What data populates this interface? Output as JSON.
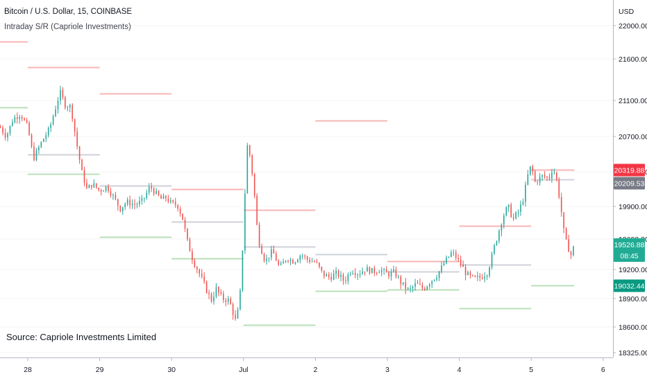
{
  "header": {
    "symbol_title": "Bitcoin / U.S. Dollar, 15, COINBASE",
    "indicator_title": "Intraday S/R (Capriole Investments)"
  },
  "source_note": "Source: Capriole Investments Limited",
  "chart_data": {
    "type": "candlestick",
    "currency_label": "USD",
    "y_ticks": [
      {
        "value": 22000,
        "label": "22000.00"
      },
      {
        "value": 21600,
        "label": "21600.00"
      },
      {
        "value": 21100,
        "label": "21100.00"
      },
      {
        "value": 20700,
        "label": "20700.00"
      },
      {
        "value": 20300,
        "label": "20300.00"
      },
      {
        "value": 19900,
        "label": "19900.00"
      },
      {
        "value": 19600,
        "label": "19600.00"
      },
      {
        "value": 19200,
        "label": "19200.00"
      },
      {
        "value": 18900,
        "label": "18900.00"
      },
      {
        "value": 18600,
        "label": "18600.00"
      },
      {
        "value": 18325,
        "label": "18325.00"
      }
    ],
    "x_ticks": [
      {
        "day": 0,
        "label": "28"
      },
      {
        "day": 1,
        "label": "29"
      },
      {
        "day": 2,
        "label": "30"
      },
      {
        "day": 3,
        "label": "Jul"
      },
      {
        "day": 4,
        "label": "2"
      },
      {
        "day": 5,
        "label": "3"
      },
      {
        "day": 6,
        "label": "4"
      },
      {
        "day": 7,
        "label": "5"
      },
      {
        "day": 8,
        "label": "6"
      }
    ],
    "price_badges": [
      {
        "value": 20319.88,
        "label": "20319.88",
        "color": "#f23645",
        "sub": ""
      },
      {
        "value": 20209.53,
        "label": "20209.53",
        "color": "#787b86",
        "sub": ""
      },
      {
        "value": 19526.88,
        "label": "19526.88",
        "color": "#22ab94",
        "sub": "08:45"
      },
      {
        "value": 19032.44,
        "label": "19032.44",
        "color": "#089981",
        "sub": ""
      }
    ],
    "levels": [
      {
        "start": -0.4,
        "end": 0.0,
        "value": 21810,
        "kind": "resistance"
      },
      {
        "start": -0.4,
        "end": 0.0,
        "value": 21025,
        "kind": "support"
      },
      {
        "start": 0.0,
        "end": 1.0,
        "value": 21500,
        "kind": "resistance"
      },
      {
        "start": 0.0,
        "end": 1.0,
        "value": 20500,
        "kind": "pivot"
      },
      {
        "start": 0.0,
        "end": 1.0,
        "value": 20280,
        "kind": "support"
      },
      {
        "start": 1.0,
        "end": 2.0,
        "value": 21180,
        "kind": "resistance"
      },
      {
        "start": 1.0,
        "end": 2.0,
        "value": 20140,
        "kind": "pivot"
      },
      {
        "start": 1.0,
        "end": 2.0,
        "value": 19620,
        "kind": "support"
      },
      {
        "start": 2.0,
        "end": 3.0,
        "value": 20100,
        "kind": "resistance"
      },
      {
        "start": 2.0,
        "end": 3.0,
        "value": 19760,
        "kind": "pivot"
      },
      {
        "start": 2.0,
        "end": 3.0,
        "value": 19350,
        "kind": "support"
      },
      {
        "start": 3.0,
        "end": 4.0,
        "value": 19870,
        "kind": "resistance"
      },
      {
        "start": 3.0,
        "end": 4.0,
        "value": 19500,
        "kind": "pivot"
      },
      {
        "start": 3.0,
        "end": 4.0,
        "value": 18620,
        "kind": "support"
      },
      {
        "start": 4.0,
        "end": 5.0,
        "value": 20880,
        "kind": "resistance"
      },
      {
        "start": 4.0,
        "end": 5.0,
        "value": 19400,
        "kind": "pivot"
      },
      {
        "start": 4.0,
        "end": 5.0,
        "value": 18980,
        "kind": "support"
      },
      {
        "start": 5.0,
        "end": 6.0,
        "value": 19310,
        "kind": "resistance"
      },
      {
        "start": 5.0,
        "end": 6.0,
        "value": 19180,
        "kind": "pivot"
      },
      {
        "start": 5.0,
        "end": 6.0,
        "value": 18990,
        "kind": "support"
      },
      {
        "start": 6.0,
        "end": 7.0,
        "value": 19720,
        "kind": "resistance"
      },
      {
        "start": 6.0,
        "end": 7.0,
        "value": 19260,
        "kind": "pivot"
      },
      {
        "start": 6.0,
        "end": 7.0,
        "value": 18800,
        "kind": "support"
      },
      {
        "start": 7.0,
        "end": 7.6,
        "value": 20319.88,
        "kind": "resistance"
      },
      {
        "start": 7.0,
        "end": 7.6,
        "value": 20209.53,
        "kind": "pivot"
      },
      {
        "start": 7.0,
        "end": 7.6,
        "value": 19032.44,
        "kind": "support"
      }
    ],
    "price_path": [
      [
        -0.38,
        20800
      ],
      [
        -0.3,
        20700
      ],
      [
        -0.2,
        20900
      ],
      [
        -0.1,
        20950
      ],
      [
        0.0,
        20800
      ],
      [
        0.08,
        20450
      ],
      [
        0.2,
        20650
      ],
      [
        0.3,
        20780
      ],
      [
        0.38,
        21000
      ],
      [
        0.45,
        21200
      ],
      [
        0.52,
        21050
      ],
      [
        0.6,
        21030
      ],
      [
        0.68,
        20620
      ],
      [
        0.75,
        20300
      ],
      [
        0.82,
        20100
      ],
      [
        0.9,
        20160
      ],
      [
        1.0,
        20080
      ],
      [
        1.1,
        20130
      ],
      [
        1.2,
        20000
      ],
      [
        1.28,
        19880
      ],
      [
        1.38,
        19950
      ],
      [
        1.5,
        19920
      ],
      [
        1.6,
        19970
      ],
      [
        1.7,
        20130
      ],
      [
        1.78,
        20050
      ],
      [
        1.86,
        19980
      ],
      [
        1.92,
        20000
      ],
      [
        2.0,
        19930
      ],
      [
        2.08,
        19920
      ],
      [
        2.15,
        19800
      ],
      [
        2.3,
        19300
      ],
      [
        2.42,
        19100
      ],
      [
        2.55,
        18880
      ],
      [
        2.62,
        19000
      ],
      [
        2.7,
        18900
      ],
      [
        2.8,
        18880
      ],
      [
        2.9,
        18640
      ],
      [
        2.96,
        19000
      ],
      [
        3.0,
        19700
      ],
      [
        3.05,
        20600
      ],
      [
        3.1,
        20450
      ],
      [
        3.15,
        20050
      ],
      [
        3.2,
        19600
      ],
      [
        3.3,
        19300
      ],
      [
        3.4,
        19450
      ],
      [
        3.5,
        19220
      ],
      [
        3.6,
        19350
      ],
      [
        3.7,
        19300
      ],
      [
        3.8,
        19400
      ],
      [
        3.9,
        19320
      ],
      [
        4.0,
        19300
      ],
      [
        4.1,
        19150
      ],
      [
        4.2,
        19120
      ],
      [
        4.3,
        19160
      ],
      [
        4.4,
        19080
      ],
      [
        4.5,
        19200
      ],
      [
        4.6,
        19160
      ],
      [
        4.7,
        19210
      ],
      [
        4.8,
        19180
      ],
      [
        4.9,
        19200
      ],
      [
        5.0,
        19150
      ],
      [
        5.1,
        19170
      ],
      [
        5.2,
        19050
      ],
      [
        5.3,
        18980
      ],
      [
        5.4,
        19050
      ],
      [
        5.5,
        19000
      ],
      [
        5.6,
        19080
      ],
      [
        5.7,
        19150
      ],
      [
        5.8,
        19300
      ],
      [
        5.9,
        19430
      ],
      [
        6.0,
        19300
      ],
      [
        6.1,
        19150
      ],
      [
        6.2,
        19100
      ],
      [
        6.3,
        19120
      ],
      [
        6.4,
        19180
      ],
      [
        6.5,
        19550
      ],
      [
        6.6,
        19800
      ],
      [
        6.68,
        19900
      ],
      [
        6.75,
        19780
      ],
      [
        6.82,
        19850
      ],
      [
        6.88,
        19950
      ],
      [
        6.95,
        20250
      ],
      [
        7.0,
        20380
      ],
      [
        7.05,
        20180
      ],
      [
        7.15,
        20250
      ],
      [
        7.25,
        20230
      ],
      [
        7.3,
        20350
      ],
      [
        7.35,
        20220
      ],
      [
        7.4,
        19960
      ],
      [
        7.45,
        19680
      ],
      [
        7.5,
        19520
      ],
      [
        7.55,
        19380
      ],
      [
        7.6,
        19526.88
      ]
    ]
  }
}
